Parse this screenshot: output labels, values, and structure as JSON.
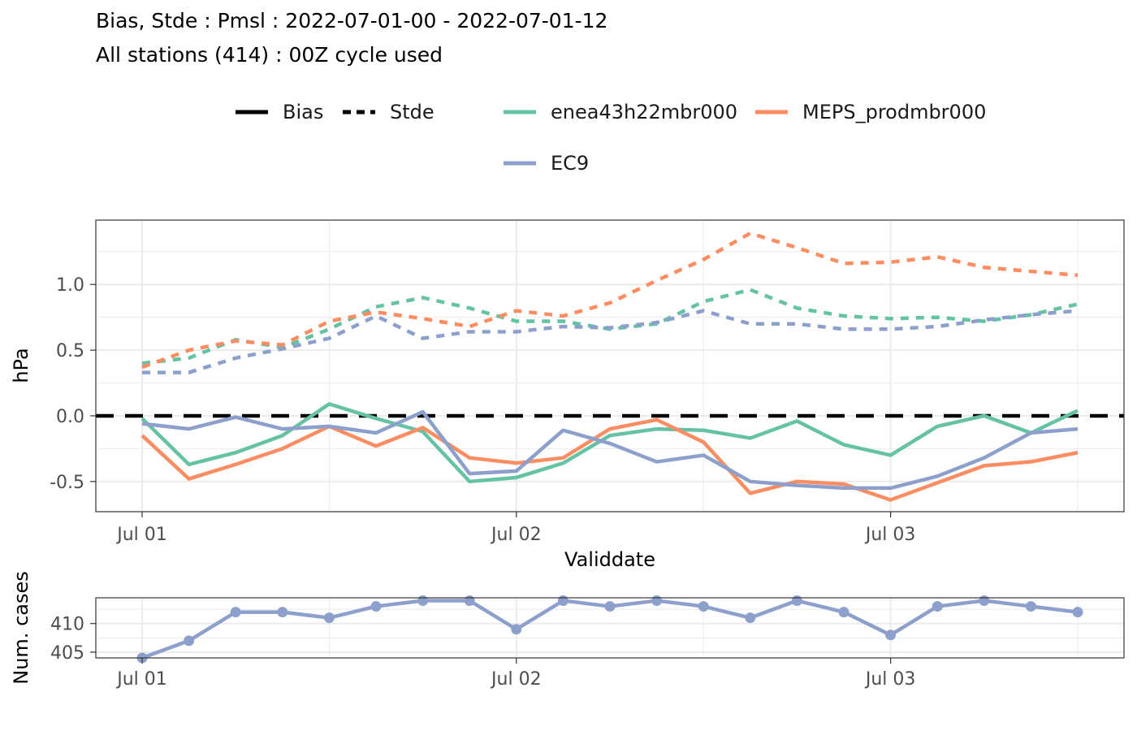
{
  "titles": {
    "line1": "Bias, Stde : Pmsl : 2022-07-01-00 - 2022-07-01-12",
    "line2": "All stations (414) : 00Z cycle used"
  },
  "legend": {
    "linetype": [
      {
        "label": "Bias",
        "dash": "solid"
      },
      {
        "label": "Stde",
        "dash": "dashed"
      }
    ],
    "models": [
      {
        "label": "enea43h22mbr000",
        "color": "#66C2A5"
      },
      {
        "label": "MEPS_prodmbr000",
        "color": "#FC8D62"
      },
      {
        "label": "EC9",
        "color": "#8DA0CB"
      }
    ]
  },
  "chart_data": [
    {
      "type": "line",
      "xlabel": "Validdate",
      "ylabel": "hPa",
      "x_unit": "hours after 2022-07-01 00Z",
      "x": [
        0,
        3,
        6,
        9,
        12,
        15,
        18,
        21,
        24,
        27,
        30,
        33,
        36,
        39,
        42,
        45,
        48,
        51,
        54,
        57,
        60
      ],
      "xticks": [
        {
          "value": 0,
          "label": "Jul 01"
        },
        {
          "value": 24,
          "label": "Jul 02"
        },
        {
          "value": 48,
          "label": "Jul 03"
        }
      ],
      "yticks": [
        {
          "value": 1.0,
          "label": "1.0"
        },
        {
          "value": 0.5,
          "label": "0.5"
        },
        {
          "value": 0.0,
          "label": "0.0"
        },
        {
          "value": -0.5,
          "label": "-0.5"
        }
      ],
      "ylim": [
        -0.73,
        1.49
      ],
      "grid": true,
      "reference_line": {
        "value": 0,
        "style": "dashed",
        "color": "#000000"
      },
      "series": [
        {
          "name": "enea43h22mbr000",
          "component": "Bias",
          "color": "#66C2A5",
          "dash": "solid",
          "values": [
            -0.02,
            -0.37,
            -0.28,
            -0.15,
            0.09,
            -0.02,
            -0.12,
            -0.5,
            -0.47,
            -0.36,
            -0.15,
            -0.1,
            -0.11,
            -0.17,
            -0.04,
            -0.22,
            -0.3,
            -0.08,
            0.0,
            -0.13,
            0.04
          ]
        },
        {
          "name": "MEPS_prodmbr000",
          "component": "Bias",
          "color": "#FC8D62",
          "dash": "solid",
          "values": [
            -0.15,
            -0.48,
            -0.37,
            -0.25,
            -0.08,
            -0.23,
            -0.09,
            -0.32,
            -0.36,
            -0.32,
            -0.1,
            -0.03,
            -0.2,
            -0.59,
            -0.5,
            -0.52,
            -0.64,
            -0.51,
            -0.38,
            -0.35,
            -0.28
          ]
        },
        {
          "name": "EC9",
          "component": "Bias",
          "color": "#8DA0CB",
          "dash": "solid",
          "values": [
            -0.06,
            -0.1,
            -0.01,
            -0.1,
            -0.08,
            -0.13,
            0.03,
            -0.44,
            -0.42,
            -0.11,
            -0.21,
            -0.35,
            -0.3,
            -0.5,
            -0.53,
            -0.55,
            -0.55,
            -0.46,
            -0.32,
            -0.13,
            -0.1
          ]
        },
        {
          "name": "enea43h22mbr000",
          "component": "Stde",
          "color": "#66C2A5",
          "dash": "dashed",
          "values": [
            0.4,
            0.44,
            0.58,
            0.52,
            0.66,
            0.83,
            0.9,
            0.82,
            0.72,
            0.72,
            0.66,
            0.7,
            0.87,
            0.96,
            0.82,
            0.76,
            0.74,
            0.75,
            0.72,
            0.77,
            0.85
          ]
        },
        {
          "name": "MEPS_prodmbr000",
          "component": "Stde",
          "color": "#FC8D62",
          "dash": "dashed",
          "values": [
            0.37,
            0.5,
            0.57,
            0.54,
            0.72,
            0.79,
            0.74,
            0.68,
            0.8,
            0.76,
            0.86,
            1.03,
            1.19,
            1.39,
            1.28,
            1.16,
            1.17,
            1.21,
            1.13,
            1.1,
            1.07
          ]
        },
        {
          "name": "EC9",
          "component": "Stde",
          "color": "#8DA0CB",
          "dash": "dashed",
          "values": [
            0.33,
            0.33,
            0.44,
            0.51,
            0.59,
            0.76,
            0.59,
            0.64,
            0.64,
            0.68,
            0.67,
            0.71,
            0.8,
            0.7,
            0.7,
            0.66,
            0.66,
            0.68,
            0.73,
            0.77,
            0.8
          ]
        }
      ]
    },
    {
      "type": "line",
      "xlabel": "",
      "ylabel": "Num. cases",
      "x_unit": "hours after 2022-07-01 00Z",
      "x": [
        0,
        3,
        6,
        9,
        12,
        15,
        18,
        21,
        24,
        27,
        30,
        33,
        36,
        39,
        42,
        45,
        48,
        51,
        54,
        57,
        60
      ],
      "xticks": [
        {
          "value": 0,
          "label": "Jul 01"
        },
        {
          "value": 24,
          "label": "Jul 02"
        },
        {
          "value": 48,
          "label": "Jul 03"
        }
      ],
      "yticks": [
        {
          "value": 410,
          "label": "410"
        },
        {
          "value": 405,
          "label": "405"
        }
      ],
      "ylim": [
        404.0,
        414.5
      ],
      "grid": true,
      "markers": true,
      "series": [
        {
          "color": "#8DA0CB",
          "values": [
            404,
            407,
            412,
            412,
            411,
            413,
            414,
            414,
            409,
            414,
            413,
            414,
            413,
            411,
            414,
            412,
            408,
            413,
            414,
            413,
            412
          ]
        }
      ]
    }
  ]
}
